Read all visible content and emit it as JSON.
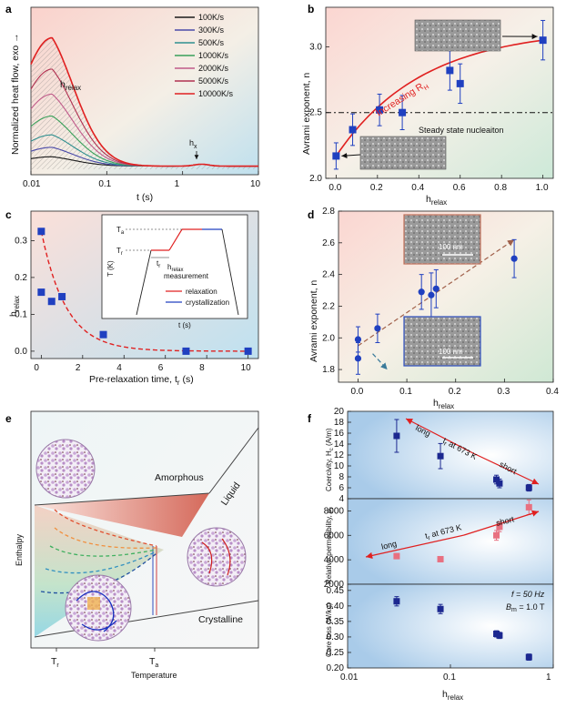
{
  "panel_a": {
    "label": "a",
    "y_label": "Normalized heat flow, exo →",
    "x_label": "t (s)",
    "x_ticks": [
      "0.01",
      "0.1",
      "1",
      "10"
    ],
    "annotation_relax": "h",
    "annotation_relax_sub": "relax",
    "annotation_x": "h",
    "annotation_x_sub": "x",
    "legend": [
      "100K/s",
      "300K/s",
      "500K/s",
      "1000K/s",
      "2000K/s",
      "5000K/s",
      "10000K/s"
    ],
    "legend_colors": [
      "#1a1a1a",
      "#4a4aa8",
      "#2f8f8f",
      "#3aa05a",
      "#c05a8a",
      "#b03050",
      "#e02020"
    ]
  },
  "panel_b": {
    "label": "b",
    "y_label": "Avrami exponent, n",
    "x_label": "h",
    "x_label_sub": "relax",
    "x_ticks": [
      "0.0",
      "0.2",
      "0.4",
      "0.6",
      "0.8",
      "1.0"
    ],
    "y_ticks": [
      "2.0",
      "2.5",
      "3.0"
    ],
    "arrow_text": "Increasing R",
    "arrow_text_sub": "H",
    "line_label": "Steady state nucleaiton",
    "inset_top_text": "",
    "inset_bottom_text": ""
  },
  "panel_c": {
    "label": "c",
    "y_label": "h",
    "y_label_sub": "relax",
    "x_label": "Pre-relaxation time, t",
    "x_label_sub": "r",
    "x_label_unit": " (s)",
    "x_ticks": [
      "0",
      "2",
      "4",
      "6",
      "8",
      "10"
    ],
    "y_ticks": [
      "0.0",
      "0.1",
      "0.2",
      "0.3"
    ],
    "inset": {
      "y_label": "T (K)",
      "x_label": "t (s)",
      "ta": "T",
      "ta_sub": "a",
      "tr": "T",
      "tr_sub": "r",
      "tr_time": "t",
      "tr_time_sub": "r",
      "hrelax": "h",
      "hrelax_sub": "relax",
      "measurement": "measurement",
      "leg_relax": "relaxation",
      "leg_cryst": "crystallization"
    }
  },
  "panel_d": {
    "label": "d",
    "y_label": "Avrami exponent, n",
    "x_label": "h",
    "x_label_sub": "relax",
    "x_ticks": [
      "0.0",
      "0.1",
      "0.2",
      "0.3",
      "0.4"
    ],
    "y_ticks": [
      "1.8",
      "2.0",
      "2.2",
      "2.4",
      "2.6",
      "2.8"
    ],
    "scale_top": "100 nm",
    "scale_bottom": "100 nm"
  },
  "panel_e": {
    "label": "e",
    "y_label": "Enthalpy",
    "x_label": "Temperature",
    "amorphous": "Amorphous",
    "liquid": "Liquid",
    "crystalline": "Crystalline",
    "tr": "T",
    "tr_sub": "r",
    "ta": "T",
    "ta_sub": "a"
  },
  "panel_f": {
    "label": "f",
    "x_label": "h",
    "x_label_sub": "relax",
    "x_ticks": [
      "0.01",
      "0.1",
      "1"
    ],
    "top": {
      "y_label": "Coercivity, H",
      "y_label_sub": "c",
      "y_label_unit": " (A/m)",
      "y_ticks": [
        "4",
        "6",
        "8",
        "10",
        "12",
        "14",
        "16",
        "18",
        "20"
      ],
      "long": "long",
      "short": "short",
      "mid": "t",
      "mid_sub": "r",
      "mid_rest": " at 673 K"
    },
    "middle": {
      "y_label": "Relative permeability, μ",
      "y_label_sub": "r",
      "y_ticks": [
        "2000",
        "4000",
        "6000",
        "8000"
      ],
      "long": "long",
      "short": "short",
      "mid": "t",
      "mid_sub": "r",
      "mid_rest": " at 673 K"
    },
    "bottom": {
      "y_label": "Core loss (W/kg)",
      "y_ticks": [
        "0.20",
        "0.25",
        "0.30",
        "0.35",
        "0.40",
        "0.45"
      ],
      "cond1": "f = 50 Hz",
      "cond2": "B",
      "cond2_sub": "m",
      "cond2_rest": " = 1.0 T"
    }
  },
  "chart_data": [
    {
      "panel": "b",
      "type": "scatter",
      "xlabel": "hrelax",
      "ylabel": "Avrami exponent, n",
      "xlim": [
        -0.05,
        1.05
      ],
      "ylim": [
        2.0,
        3.3
      ],
      "x": [
        0.0,
        0.08,
        0.21,
        0.32,
        0.55,
        0.6,
        1.0
      ],
      "y": [
        2.17,
        2.37,
        2.52,
        2.5,
        2.82,
        2.72,
        3.05
      ],
      "yerr": [
        0.1,
        0.12,
        0.12,
        0.13,
        0.15,
        0.15,
        0.15
      ],
      "reference_line_y": 2.5
    },
    {
      "panel": "c",
      "type": "scatter",
      "xlabel": "Pre-relaxation time, tr (s)",
      "ylabel": "hrelax",
      "xlim": [
        -0.5,
        10.5
      ],
      "ylim": [
        -0.02,
        0.38
      ],
      "x": [
        0,
        0,
        0.5,
        1,
        3,
        7,
        10
      ],
      "y": [
        0.325,
        0.16,
        0.135,
        0.148,
        0.045,
        0.0,
        0.0
      ]
    },
    {
      "panel": "d",
      "type": "scatter",
      "xlabel": "hrelax",
      "ylabel": "Avrami exponent, n",
      "xlim": [
        -0.04,
        0.4
      ],
      "ylim": [
        1.72,
        2.8
      ],
      "x": [
        0.0,
        0.0,
        0.04,
        0.13,
        0.15,
        0.16,
        0.32
      ],
      "y": [
        1.99,
        1.87,
        2.06,
        2.29,
        2.27,
        2.31,
        2.5
      ],
      "yerr": [
        0.08,
        0.1,
        0.09,
        0.11,
        0.14,
        0.12,
        0.12
      ]
    },
    {
      "panel": "f-top",
      "type": "scatter",
      "xlabel": "hrelax",
      "ylabel": "Coercivity, Hc (A/m)",
      "xscale": "log",
      "xlim": [
        0.01,
        1
      ],
      "ylim": [
        4,
        20
      ],
      "x": [
        0.03,
        0.08,
        0.28,
        0.3,
        0.58
      ],
      "y": [
        15.5,
        11.8,
        7.5,
        6.8,
        6.0
      ],
      "yerr": [
        3.0,
        2.3,
        0.8,
        0.8,
        0.6
      ]
    },
    {
      "panel": "f-middle",
      "type": "scatter",
      "xlabel": "hrelax",
      "ylabel": "Relative permeability, μr",
      "xscale": "log",
      "xlim": [
        0.01,
        1
      ],
      "ylim": [
        2000,
        9000
      ],
      "x": [
        0.03,
        0.08,
        0.28,
        0.3,
        0.58
      ],
      "y": [
        4300,
        4050,
        6000,
        6700,
        8300
      ],
      "yerr": [
        150,
        150,
        400,
        400,
        600
      ]
    },
    {
      "panel": "f-bottom",
      "type": "scatter",
      "xlabel": "hrelax",
      "ylabel": "Core loss (W/kg)",
      "xscale": "log",
      "xlim": [
        0.01,
        1
      ],
      "ylim": [
        0.2,
        0.47
      ],
      "x": [
        0.03,
        0.08,
        0.28,
        0.3,
        0.58
      ],
      "y": [
        0.415,
        0.39,
        0.31,
        0.305,
        0.235
      ],
      "yerr": [
        0.015,
        0.015,
        0.01,
        0.01,
        0.01
      ]
    }
  ]
}
